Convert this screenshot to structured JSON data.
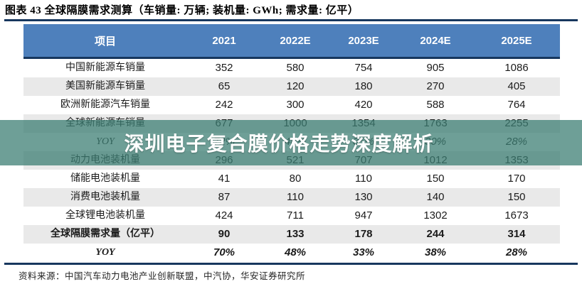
{
  "title": "图表 43 全球隔膜需求测算（车销量: 万辆; 装机量: GWh; 需求量: 亿平）",
  "watermark": {
    "text": "深圳电子复合膜价格走势深度解析"
  },
  "table": {
    "columns": [
      "项目",
      "2021",
      "2022E",
      "2023E",
      "2024E",
      "2025E"
    ],
    "rows": [
      {
        "label": "中国新能源车销量",
        "values": [
          "352",
          "580",
          "754",
          "905",
          "1086"
        ],
        "shaded": false,
        "bold": false,
        "italic": false
      },
      {
        "label": "美国新能源车销量",
        "values": [
          "65",
          "120",
          "180",
          "270",
          "405"
        ],
        "shaded": true,
        "bold": false,
        "italic": false
      },
      {
        "label": "欧洲新能源汽车销量",
        "values": [
          "242",
          "300",
          "420",
          "588",
          "764"
        ],
        "shaded": false,
        "bold": false,
        "italic": false
      },
      {
        "label": "全球新能源车销量",
        "values": [
          "677",
          "1000",
          "1354",
          "1763",
          "2255"
        ],
        "shaded": true,
        "bold": false,
        "italic": false
      },
      {
        "label": "YOY",
        "values": [
          "72%",
          "48%",
          "35%",
          "30%",
          "28%"
        ],
        "shaded": false,
        "bold": false,
        "italic": true
      },
      {
        "label": "动力电池装机量",
        "values": [
          "296",
          "521",
          "707",
          "1012",
          "1353"
        ],
        "shaded": true,
        "bold": false,
        "italic": false
      },
      {
        "label": "储能电池装机量",
        "values": [
          "41",
          "80",
          "110",
          "150",
          "170"
        ],
        "shaded": false,
        "bold": false,
        "italic": false
      },
      {
        "label": "消费电池装机量",
        "values": [
          "87",
          "110",
          "130",
          "140",
          "150"
        ],
        "shaded": true,
        "bold": false,
        "italic": false
      },
      {
        "label": "全球锂电池装机量",
        "values": [
          "424",
          "711",
          "947",
          "1302",
          "1673"
        ],
        "shaded": false,
        "bold": false,
        "italic": false
      },
      {
        "label": "全球隔膜需求量（亿平）",
        "values": [
          "90",
          "133",
          "178",
          "244",
          "314"
        ],
        "shaded": true,
        "bold": true,
        "italic": false
      },
      {
        "label": "YOY",
        "values": [
          "70%",
          "48%",
          "33%",
          "38%",
          "28%"
        ],
        "shaded": false,
        "bold": true,
        "italic": true
      }
    ]
  },
  "footer": {
    "source": "资料来源：中国汽车动力电池产业创新联盟，中汽协，华安证券研究所"
  },
  "colors": {
    "header_bg": "#4e80bc",
    "header_text": "#ffffff",
    "rule": "#17375e",
    "shaded_row": "#e9e9e9",
    "watermark_band": "#3c7d73",
    "watermark_band_opacity": "0.74",
    "watermark_text": "#ffffff"
  }
}
